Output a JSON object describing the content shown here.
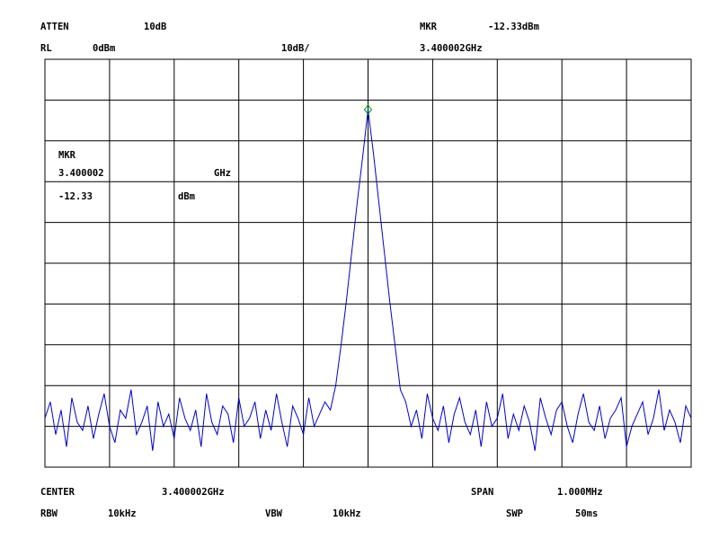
{
  "chart_data": {
    "type": "line",
    "header": {
      "atten_label": "ATTEN",
      "atten_value": "10dB",
      "mkr_label": "MKR",
      "mkr_level": "-12.33dBm",
      "rl_label": "RL",
      "rl_value": "0dBm",
      "scale": "10dB/",
      "mkr_freq": "3.400002GHz"
    },
    "marker_box": {
      "label": "MKR",
      "freq": "3.400002",
      "freq_unit": "GHz",
      "level": "-12.33",
      "level_unit": "dBm"
    },
    "footer": {
      "center_label": "CENTER",
      "center_value": "3.400002GHz",
      "span_label": "SPAN",
      "span_value": "1.000MHz",
      "rbw_label": "RBW",
      "rbw_value": "10kHz",
      "vbw_label": "VBW",
      "vbw_value": "10kHz",
      "swp_label": "SWP",
      "swp_value": "50ms"
    },
    "ylim": [
      -100,
      0
    ],
    "yticks": [
      -100,
      -90,
      -80,
      -70,
      -60,
      -50,
      -40,
      -30,
      -20,
      -10,
      0
    ],
    "grid": true,
    "color": "#0000cc",
    "marker_color": "#009900",
    "marker_index": 60,
    "values": [
      -88,
      -84,
      -92,
      -86,
      -95,
      -83,
      -89,
      -91,
      -85,
      -93,
      -87,
      -82,
      -90,
      -94,
      -86,
      -88,
      -81,
      -92,
      -89,
      -85,
      -96,
      -84,
      -90,
      -87,
      -93,
      -83,
      -88,
      -91,
      -86,
      -95,
      -82,
      -89,
      -92,
      -85,
      -87,
      -94,
      -83,
      -90,
      -88,
      -84,
      -93,
      -86,
      -91,
      -82,
      -89,
      -95,
      -85,
      -88,
      -92,
      -83,
      -90,
      -87,
      -84,
      -86,
      -80,
      -70,
      -59,
      -47,
      -35,
      -24,
      -12.33,
      -23,
      -35,
      -47,
      -59,
      -70,
      -81,
      -84,
      -90,
      -86,
      -93,
      -82,
      -88,
      -91,
      -85,
      -94,
      -87,
      -83,
      -89,
      -92,
      -86,
      -95,
      -84,
      -90,
      -88,
      -82,
      -93,
      -87,
      -91,
      -85,
      -89,
      -96,
      -83,
      -88,
      -92,
      -86,
      -84,
      -90,
      -94,
      -87,
      -82,
      -89,
      -91,
      -85,
      -93,
      -88,
      -86,
      -83,
      -95,
      -90,
      -87,
      -84,
      -92,
      -88,
      -81,
      -91,
      -86,
      -89,
      -94,
      -85,
      -88
    ]
  }
}
